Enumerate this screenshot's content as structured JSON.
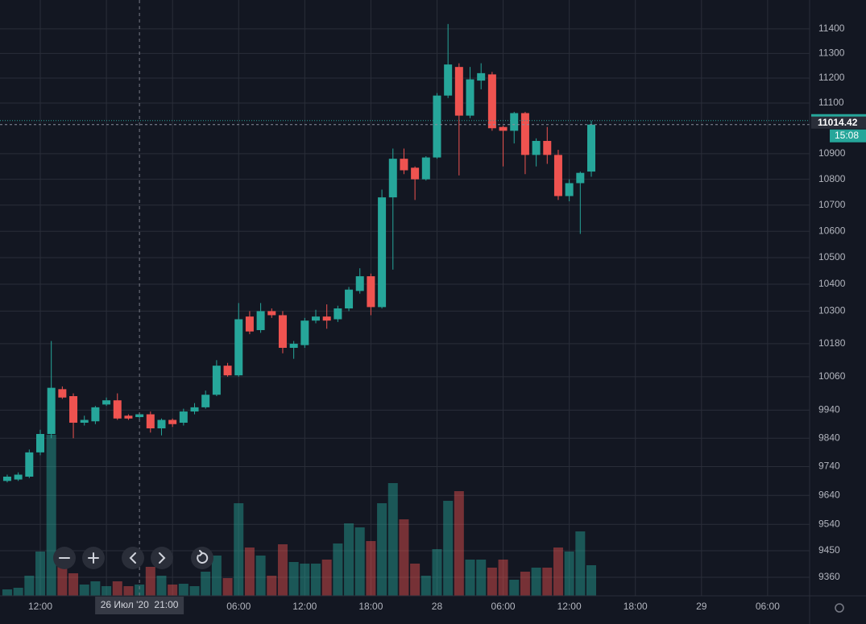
{
  "chart_data": {
    "type": "candlestick",
    "categories": [
      null,
      null,
      null,
      "12:00",
      null,
      null,
      null,
      null,
      null,
      null,
      null,
      null,
      null,
      null,
      null,
      null,
      null,
      null,
      null,
      null,
      null,
      "06:00",
      null,
      null,
      null,
      null,
      null,
      "12:00",
      null,
      null,
      null,
      null,
      null,
      "18:00",
      null,
      null,
      null,
      null,
      null,
      "28",
      null,
      null,
      null,
      null,
      null,
      "06:00",
      null,
      null,
      null,
      null,
      null,
      "12:00",
      null,
      null,
      null,
      null,
      null,
      "18:00",
      null,
      null,
      null,
      null,
      null,
      "29",
      null,
      null,
      null,
      null,
      null,
      "06:00",
      null,
      null,
      null
    ],
    "open": [
      9690,
      9695,
      9705,
      9790,
      9855,
      10015,
      9990,
      9895,
      9900,
      9960,
      9975,
      9920,
      9915,
      9925,
      9875,
      9905,
      9895,
      9935,
      9950,
      9995,
      10100,
      10065,
      10280,
      10230,
      10300,
      10285,
      10165,
      10175,
      10265,
      10280,
      10270,
      10310,
      10375,
      10430,
      10315,
      10730,
      10880,
      10845,
      10800,
      10885,
      11130,
      11245,
      11050,
      11190,
      11215,
      11005,
      10990,
      11060,
      10895,
      10950,
      10895,
      10735,
      10785,
      10830,
      null,
      null,
      null,
      null,
      null,
      null,
      null,
      null,
      null,
      null,
      null,
      null,
      null,
      null,
      null,
      null,
      null,
      null,
      null
    ],
    "high": [
      9712,
      9720,
      9800,
      9870,
      10190,
      10025,
      10000,
      9920,
      9955,
      9985,
      10000,
      9925,
      9930,
      9935,
      9910,
      9910,
      9945,
      9965,
      10010,
      10120,
      10110,
      10330,
      10300,
      10330,
      10310,
      10300,
      10190,
      10275,
      10305,
      10325,
      10320,
      10390,
      10460,
      10440,
      10760,
      10920,
      10920,
      10850,
      10890,
      11140,
      11420,
      11260,
      11245,
      11260,
      11225,
      11010,
      11065,
      11065,
      10960,
      11005,
      10915,
      10800,
      10830,
      11030,
      null,
      null,
      null,
      null,
      null,
      null,
      null,
      null,
      null,
      null,
      null,
      null,
      null,
      null,
      null,
      null,
      null,
      null,
      null
    ],
    "low": [
      9685,
      9690,
      9700,
      9780,
      9840,
      9980,
      9840,
      9885,
      9890,
      9955,
      9905,
      9905,
      9910,
      9860,
      9850,
      9880,
      9885,
      9925,
      9945,
      9990,
      10060,
      10060,
      10215,
      10220,
      10275,
      10145,
      10125,
      10165,
      10255,
      10235,
      10260,
      10300,
      10365,
      10285,
      10310,
      10455,
      10820,
      10720,
      10795,
      10880,
      11120,
      10815,
      11040,
      11155,
      10990,
      10850,
      10940,
      10820,
      10850,
      10860,
      10720,
      10715,
      10590,
      10810,
      null,
      null,
      null,
      null,
      null,
      null,
      null,
      null,
      null,
      null,
      null,
      null,
      null,
      null,
      null,
      null,
      null,
      null,
      null
    ],
    "close": [
      9705,
      9712,
      9790,
      9855,
      10020,
      9985,
      9895,
      9905,
      9950,
      9975,
      9910,
      9910,
      9925,
      9875,
      9905,
      9890,
      9935,
      9950,
      9995,
      10100,
      10065,
      10270,
      10225,
      10300,
      10285,
      10165,
      10180,
      10265,
      10280,
      10265,
      10310,
      10380,
      10430,
      10315,
      10730,
      10880,
      10835,
      10800,
      10885,
      11130,
      11255,
      11050,
      11195,
      11220,
      11000,
      10990,
      11060,
      10895,
      10950,
      10895,
      10735,
      10785,
      10825,
      11014.42,
      null,
      null,
      null,
      null,
      null,
      null,
      null,
      null,
      null,
      null,
      null,
      null,
      null,
      null,
      null,
      null,
      null,
      null,
      null
    ],
    "volume": [
      8,
      10,
      25,
      55,
      200,
      40,
      28,
      14,
      18,
      12,
      18,
      12,
      14,
      36,
      25,
      14,
      15,
      12,
      30,
      50,
      22,
      115,
      60,
      50,
      25,
      64,
      42,
      40,
      40,
      45,
      65,
      90,
      85,
      68,
      115,
      140,
      95,
      40,
      25,
      58,
      118,
      130,
      45,
      45,
      35,
      45,
      20,
      30,
      35,
      35,
      60,
      55,
      80,
      38,
      null,
      null,
      null,
      null,
      null,
      null,
      null,
      null,
      null,
      null,
      null,
      null,
      null,
      null,
      null,
      null,
      null,
      null,
      null
    ],
    "volume_lim": [
      0,
      740
    ],
    "up_color": "#26a69a",
    "down_color": "#ef5350",
    "ylim": [
      9298,
      11519
    ],
    "log_scale": true,
    "yticks": [
      9360,
      9450,
      9540,
      9640,
      9740,
      9840,
      9940,
      10060,
      10180,
      10300,
      10400,
      10500,
      10600,
      10700,
      10800,
      10900,
      11100,
      11200,
      11300,
      11400
    ],
    "grid": true,
    "last_price": 11014.42,
    "countdown": "15:08",
    "crosshair_label": "26 Июл '20  21:00",
    "crosshair_index": 12
  }
}
